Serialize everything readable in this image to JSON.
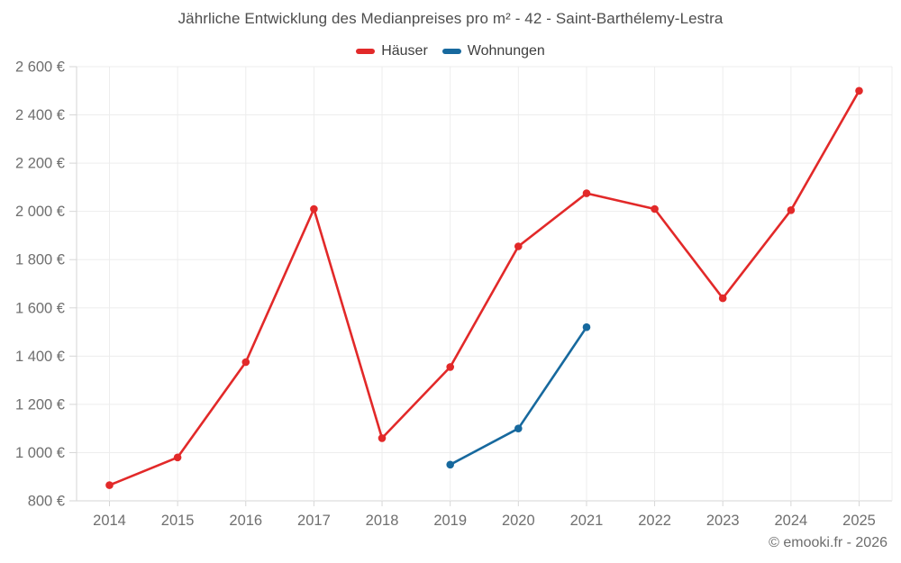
{
  "title": "Jährliche Entwicklung des Medianpreises pro m² - 42 - Saint-Barthélemy-Lestra",
  "copyright": "© emooki.fr - 2026",
  "colors": {
    "houses": "#e22929",
    "apartments": "#17699e",
    "gridline": "#ededed",
    "axis_line": "#d6d6d6",
    "tick": "#d6d6d6",
    "axis_text": "#6f6f6f"
  },
  "chart_data": {
    "type": "line",
    "title": "Jährliche Entwicklung des Medianpreises pro m² - 42 - Saint-Barthélemy-Lestra",
    "xlabel": "",
    "ylabel": "",
    "x_categories": [
      2014,
      2015,
      2016,
      2017,
      2018,
      2019,
      2020,
      2021,
      2022,
      2023,
      2024,
      2025
    ],
    "series": [
      {
        "name": "Häuser",
        "color": "#e22929",
        "points": [
          [
            2014,
            865
          ],
          [
            2015,
            980
          ],
          [
            2016,
            1375
          ],
          [
            2017,
            2010
          ],
          [
            2018,
            1060
          ],
          [
            2019,
            1355
          ],
          [
            2020,
            1855
          ],
          [
            2021,
            2075
          ],
          [
            2022,
            2010
          ],
          [
            2023,
            1640
          ],
          [
            2024,
            2005
          ],
          [
            2025,
            2500
          ]
        ]
      },
      {
        "name": "Wohnungen",
        "color": "#17699e",
        "points": [
          [
            2019,
            950
          ],
          [
            2020,
            1100
          ],
          [
            2021,
            1520
          ]
        ]
      }
    ],
    "ylim": [
      800,
      2600
    ],
    "yticks": [
      800,
      1000,
      1200,
      1400,
      1600,
      1800,
      2000,
      2200,
      2400,
      2600
    ],
    "ytick_labels": [
      "800 €",
      "1 000 €",
      "1 200 €",
      "1 400 €",
      "1 600 €",
      "1 800 €",
      "2 000 €",
      "2 200 €",
      "2 400 €",
      "2 600 €"
    ],
    "grid": true,
    "legend_position": "top",
    "currency": "€"
  }
}
